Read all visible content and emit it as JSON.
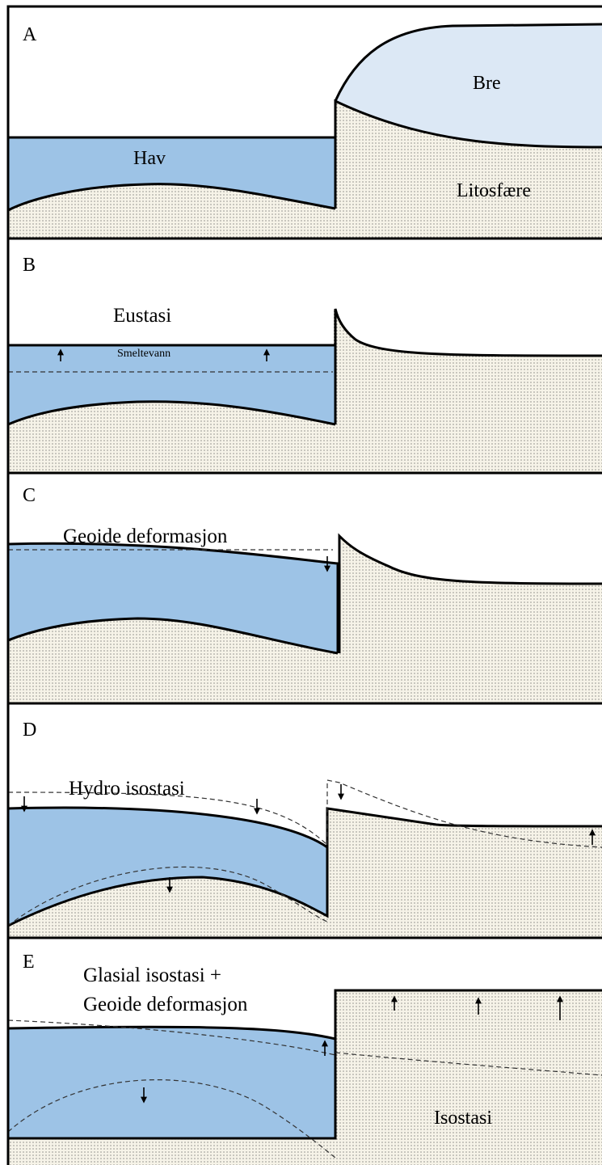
{
  "panels": [
    {
      "letter": "A",
      "labels": [
        "Bre",
        "Hav",
        "Litosfære"
      ]
    },
    {
      "letter": "B",
      "title": "Eustasi",
      "labels": [
        "Smeltevann"
      ]
    },
    {
      "letter": "C",
      "title": "Geoide deformasjon"
    },
    {
      "letter": "D",
      "title": "Hydro isostasi"
    },
    {
      "letter": "E",
      "title": [
        "Glasial isostasi +",
        "Geoide deformasjon"
      ],
      "labels": [
        "Isostasi"
      ]
    }
  ]
}
